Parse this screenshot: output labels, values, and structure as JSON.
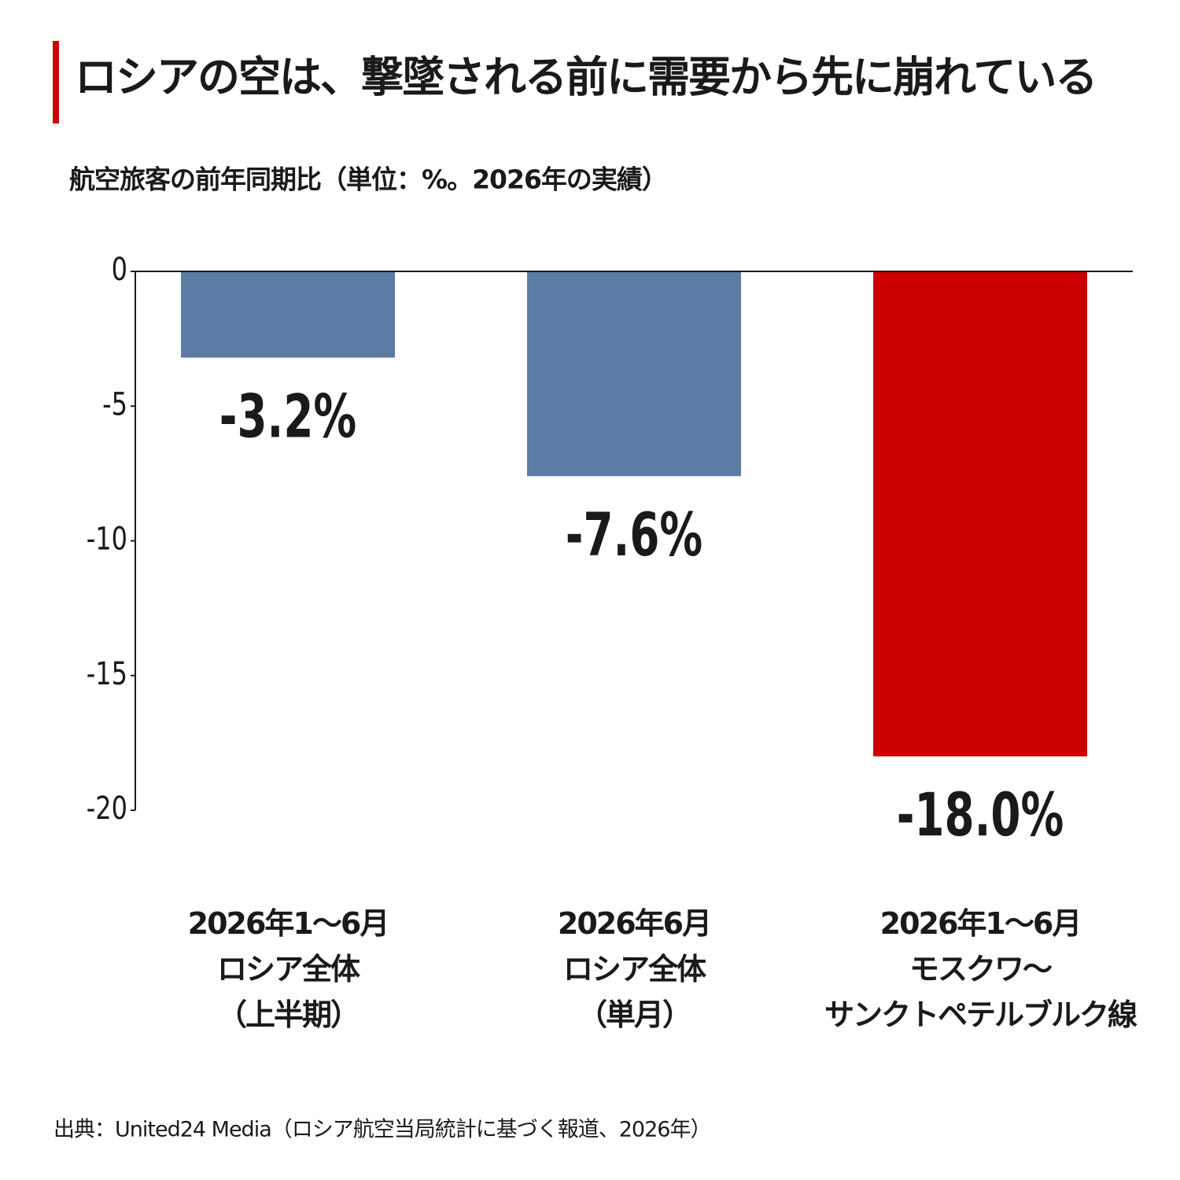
{
  "chart_data": {
    "type": "bar",
    "title": "ロシアの空は、撃墜される前に需要から先に崩れている",
    "subtitle": "航空旅客の前年同期比（単位：%。2026年の実績）",
    "categories": [
      "2026年1～6月\nロシア全体\n（上半期）",
      "2026年6月\nロシア全体\n（単月）",
      "2026年1～6月\nモスクワ～\nサンクトペテルブルク線"
    ],
    "values": [
      -3.2,
      -7.6,
      -18.0
    ],
    "value_labels": [
      "-3.2%",
      "-7.6%",
      "-18.0%"
    ],
    "colors": [
      "#5b7ca4",
      "#5b7ca4",
      "#cc0000"
    ],
    "ylim": [
      -20,
      0
    ],
    "yticks": [
      0,
      -5,
      -10,
      -15,
      -20
    ],
    "source": "出典：United24 Media（ロシア航空当局統計に基づく報道、2026年）"
  }
}
